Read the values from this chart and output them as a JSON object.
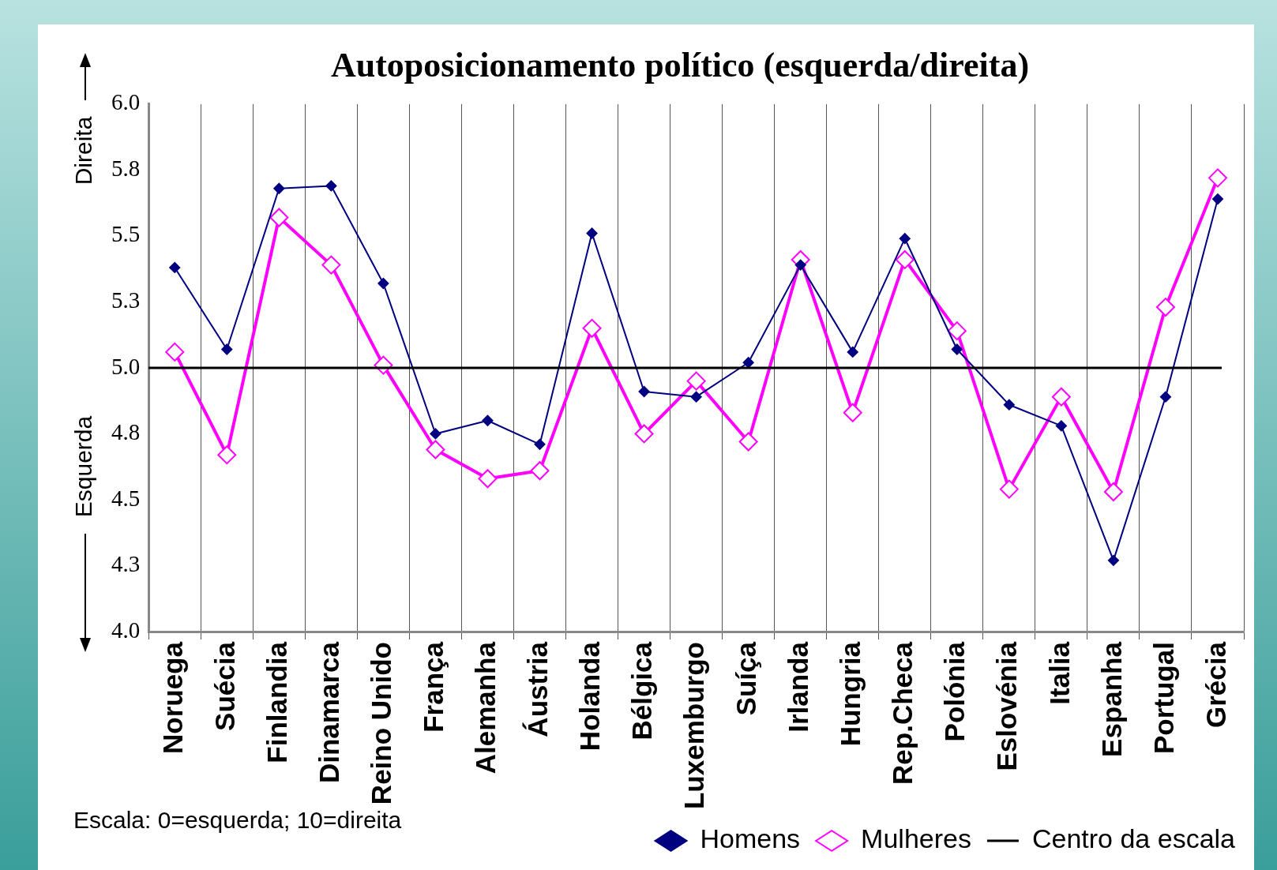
{
  "chart_data": {
    "type": "line",
    "title": "Autoposicionamento político (esquerda/direita)",
    "categories": [
      "Noruega",
      "Suécia",
      "Finlandia",
      "Dinamarca",
      "Reino Unido",
      "França",
      "Alemanha",
      "Áustria",
      "Holanda",
      "Bélgica",
      "Luxemburgo",
      "Suíça",
      "Irlanda",
      "Hungria",
      "Rep.Checa",
      "Polónia",
      "Eslovénia",
      "Italia",
      "Espanha",
      "Portugal",
      "Grécia"
    ],
    "series": [
      {
        "name": "Homens",
        "color": "#000080",
        "values": [
          5.38,
          5.07,
          5.68,
          5.69,
          5.32,
          4.75,
          4.8,
          4.71,
          5.51,
          4.91,
          4.89,
          5.02,
          5.39,
          5.06,
          5.49,
          5.07,
          4.86,
          4.78,
          4.27,
          4.89,
          5.64
        ]
      },
      {
        "name": "Mulheres",
        "color": "#ff00ff",
        "values": [
          5.06,
          4.67,
          5.57,
          5.39,
          5.01,
          4.69,
          4.58,
          4.61,
          5.15,
          4.75,
          4.95,
          4.72,
          5.41,
          4.83,
          5.41,
          5.14,
          4.54,
          4.89,
          4.53,
          5.23,
          5.72
        ]
      }
    ],
    "ylim": [
      4,
      6
    ],
    "yticks": [
      {
        "value": 4,
        "label": "4.0"
      },
      {
        "value": 4.25,
        "label": "4.3"
      },
      4.5,
      {
        "value": 4.75,
        "label": "4.8"
      },
      {
        "value": 5,
        "label": "5.0"
      },
      {
        "value": 5.25,
        "label": "5.3"
      },
      5.5,
      {
        "value": 5.75,
        "label": "5.8"
      },
      {
        "value": 6,
        "label": "6.0"
      }
    ],
    "ref_lines": [
      {
        "axis": "y",
        "value": 5,
        "label": "Centro da escala",
        "color": "#000000"
      }
    ],
    "annotations": [
      "Direita",
      "Esquerda",
      "Escala: 0=esquerda; 10=direita"
    ],
    "grid": "x",
    "legend": "bottom right",
    "marker": "diamond"
  }
}
